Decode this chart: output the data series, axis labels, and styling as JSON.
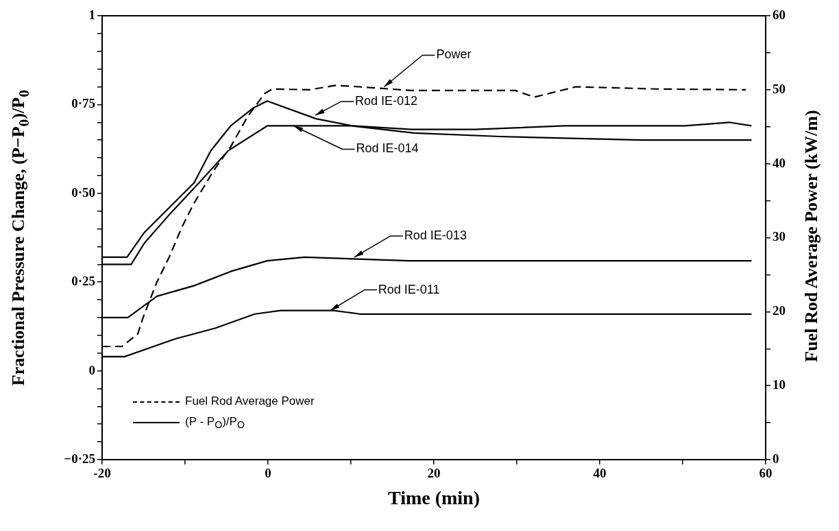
{
  "chart_data": {
    "type": "line",
    "xlabel": "Time (min)",
    "ylabel": "Fractional Pressure Change, (P−P$_{0}$)/P$_{0}$",
    "y2label": "Fuel Rod Average Power (kW/m)",
    "xlim": [
      -20,
      60
    ],
    "xticks": [
      -20,
      {
        "value": -10,
        "label": null
      },
      0,
      {
        "value": 10,
        "label": null
      },
      20,
      {
        "value": 30,
        "label": null
      },
      40,
      {
        "value": 50,
        "label": null
      },
      60
    ],
    "ylim": [
      -0.25,
      1
    ],
    "yticks": [
      {
        "value": -0.25,
        "label": "−0·25"
      },
      {
        "value": -0.2,
        "label": null
      },
      {
        "value": -0.15,
        "label": null
      },
      {
        "value": -0.1,
        "label": null
      },
      {
        "value": -0.05,
        "label": null
      },
      0,
      {
        "value": 0.05,
        "label": null
      },
      {
        "value": 0.1,
        "label": null
      },
      {
        "value": 0.15,
        "label": null
      },
      {
        "value": 0.2,
        "label": null
      },
      {
        "value": 0.25,
        "label": "0·25"
      },
      {
        "value": 0.3,
        "label": null
      },
      {
        "value": 0.35,
        "label": null
      },
      {
        "value": 0.4,
        "label": null
      },
      {
        "value": 0.45,
        "label": null
      },
      {
        "value": 0.5,
        "label": "0·50"
      },
      {
        "value": 0.55,
        "label": null
      },
      {
        "value": 0.6,
        "label": null
      },
      {
        "value": 0.65,
        "label": null
      },
      {
        "value": 0.7,
        "label": null
      },
      {
        "value": 0.75,
        "label": "0·75"
      },
      {
        "value": 0.8,
        "label": null
      },
      {
        "value": 0.85,
        "label": null
      },
      {
        "value": 0.9,
        "label": null
      },
      {
        "value": 0.95,
        "label": null
      },
      1
    ],
    "y2lim": [
      0,
      60
    ],
    "y2ticks": [
      0,
      {
        "value": 5,
        "label": null
      },
      10,
      {
        "value": 15,
        "label": null
      },
      20,
      {
        "value": 25,
        "label": null
      },
      30,
      {
        "value": 35,
        "label": null
      },
      40,
      {
        "value": 45,
        "label": null
      },
      50,
      {
        "value": 55,
        "label": null
      },
      60
    ],
    "legend": "bottom left",
    "series": [
      {
        "name": "Fuel Rod Average Power",
        "axis": "y2",
        "line_style": "dashed",
        "color": "#000000",
        "x": [
          -20,
          -17.6,
          -15.7,
          -15.1,
          -13.4,
          -11.9,
          -10.4,
          -8.9,
          -6.6,
          -4.5,
          -2.5,
          -0.4,
          0.5,
          5,
          8.2,
          11,
          17.3,
          29.8,
          32.1,
          37.1,
          47,
          57.6
        ],
        "values": [
          15.3,
          15.3,
          17,
          19.1,
          24,
          27.4,
          31.4,
          34.7,
          39,
          42.3,
          46.3,
          49.5,
          50.1,
          50,
          50.6,
          50.4,
          49.9,
          49.9,
          49,
          50.4,
          50.1,
          50
        ]
      },
      {
        "color": "#000000",
        "x": [
          -20,
          -17,
          -14.9,
          -11.9,
          -8.9,
          -6.9,
          -4.5,
          -1.8,
          -0.1,
          5.8,
          10.2,
          17.3,
          25,
          35.8,
          41,
          50.3,
          55.6,
          58.3
        ],
        "values": [
          0.32,
          0.32,
          0.39,
          0.46,
          0.53,
          0.62,
          0.69,
          0.74,
          0.76,
          0.71,
          0.69,
          0.68,
          0.68,
          0.69,
          0.69,
          0.69,
          0.7,
          0.69
        ]
      },
      {
        "color": "#000000",
        "x": [
          -20,
          -16.5,
          -14.9,
          -11.9,
          -8.3,
          -4.8,
          -0.1,
          10,
          17.6,
          28,
          45,
          58.3
        ],
        "values": [
          0.3,
          0.3,
          0.36,
          0.44,
          0.53,
          0.62,
          0.69,
          0.69,
          0.67,
          0.66,
          0.65,
          0.65
        ]
      },
      {
        "color": "#000000",
        "x": [
          -20,
          -16.9,
          -13.4,
          -8.9,
          -4.5,
          -0.1,
          4.4,
          17,
          30,
          45,
          58.3
        ],
        "values": [
          0.15,
          0.15,
          0.21,
          0.24,
          0.28,
          0.31,
          0.32,
          0.31,
          0.31,
          0.31,
          0.31
        ]
      },
      {
        "color": "#000000",
        "x": [
          -20,
          -17.3,
          -11.2,
          -6.4,
          -1.6,
          1.5,
          7.9,
          11.1,
          30,
          58.3
        ],
        "values": [
          0.04,
          0.04,
          0.09,
          0.12,
          0.16,
          0.17,
          0.17,
          0.16,
          0.16,
          0.16
        ]
      }
    ],
    "annotations": [
      {
        "text": "Power",
        "x": 14,
        "y": 0.8
      },
      {
        "text": "Rod IE-012",
        "x": 5.7,
        "y": 0.72
      },
      {
        "text": "Rod IE-014",
        "x": 3.1,
        "y": 0.69
      },
      {
        "text": "Rod IE-013",
        "x": 10.4,
        "y": 0.32
      },
      {
        "text": "Rod IE-011",
        "x": 7.5,
        "y": 0.17
      },
      "(P - P$_{O}$)/P$_{O}$"
    ]
  }
}
